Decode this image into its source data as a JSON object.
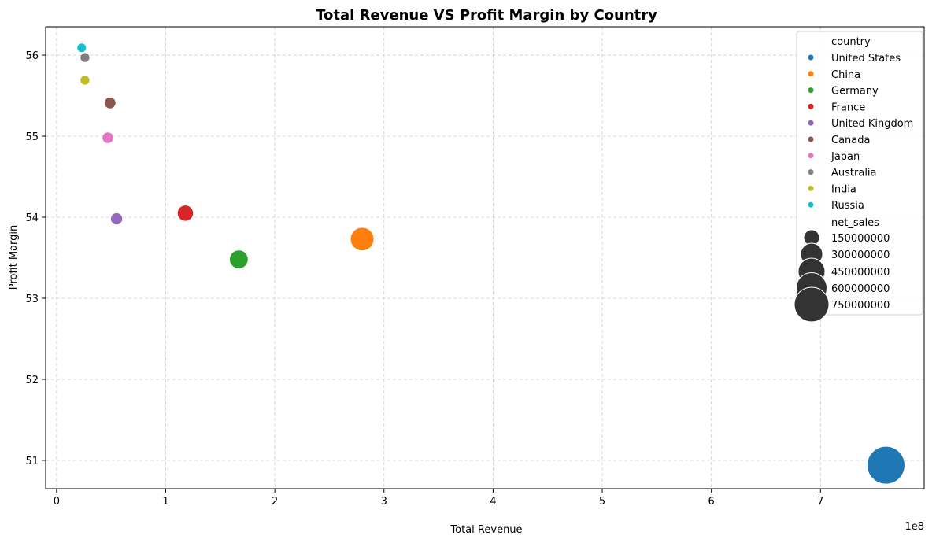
{
  "chart_data": {
    "type": "scatter",
    "title": "Total Revenue VS Profit Margin by Country",
    "xlabel": "Total Revenue",
    "ylabel": "Profit Margin",
    "x_offset_label": "1e8",
    "xlim": [
      -0.1,
      7.95
    ],
    "ylim": [
      50.65,
      56.35
    ],
    "x_ticks": [
      0,
      1,
      2,
      3,
      4,
      5,
      6,
      7
    ],
    "y_ticks": [
      51,
      52,
      53,
      54,
      55,
      56
    ],
    "grid": true,
    "legend_position": "top-right",
    "legend": {
      "hue_title": "country",
      "size_title": "net_sales",
      "size_entries": [
        "150000000",
        "300000000",
        "450000000",
        "600000000",
        "750000000"
      ]
    },
    "series": [
      {
        "name": "United States",
        "color": "#1f77b4",
        "x": 7.6,
        "y": 50.94,
        "net_sales": 760000000
      },
      {
        "name": "China",
        "color": "#ff7f0e",
        "x": 2.8,
        "y": 53.73,
        "net_sales": 280000000
      },
      {
        "name": "Germany",
        "color": "#2ca02c",
        "x": 1.67,
        "y": 53.48,
        "net_sales": 167000000
      },
      {
        "name": "France",
        "color": "#d62728",
        "x": 1.18,
        "y": 54.05,
        "net_sales": 118000000
      },
      {
        "name": "United Kingdom",
        "color": "#9467bd",
        "x": 0.55,
        "y": 53.98,
        "net_sales": 55000000
      },
      {
        "name": "Canada",
        "color": "#8c564b",
        "x": 0.49,
        "y": 55.41,
        "net_sales": 49000000
      },
      {
        "name": "Japan",
        "color": "#e377c2",
        "x": 0.47,
        "y": 54.98,
        "net_sales": 47000000
      },
      {
        "name": "Australia",
        "color": "#7f7f7f",
        "x": 0.26,
        "y": 55.97,
        "net_sales": 26000000
      },
      {
        "name": "India",
        "color": "#bcbd22",
        "x": 0.26,
        "y": 55.69,
        "net_sales": 26000000
      },
      {
        "name": "Russia",
        "color": "#17becf",
        "x": 0.23,
        "y": 56.09,
        "net_sales": 23000000
      }
    ]
  }
}
